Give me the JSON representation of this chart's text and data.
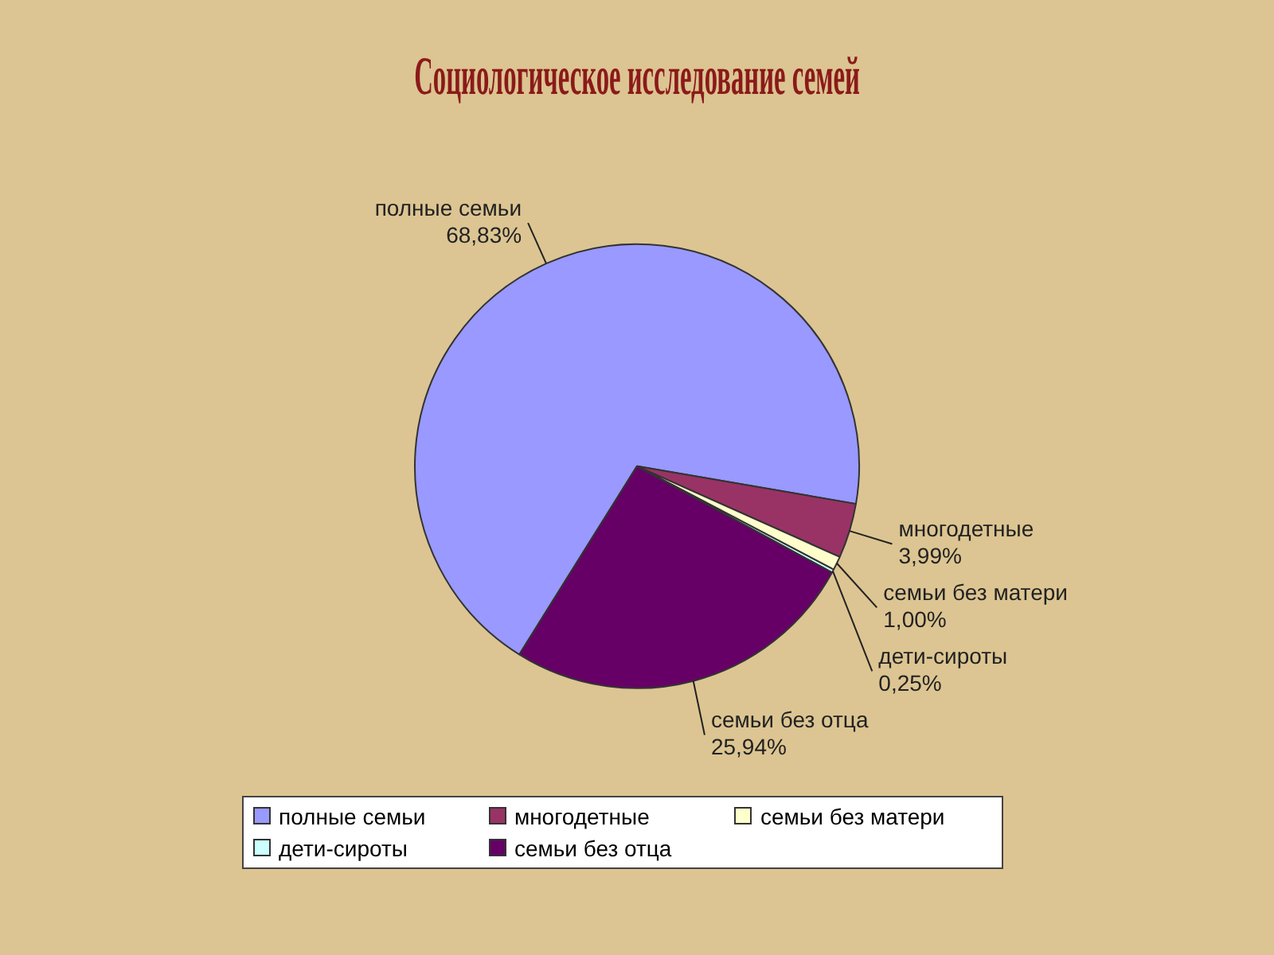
{
  "chart_data": {
    "type": "pie",
    "title": "Социологическое исследование семей",
    "categories": [
      "полные семьи",
      "многодетные",
      "семьи без матери",
      "дети-сироты",
      "семьи без отца"
    ],
    "values": [
      68.83,
      3.99,
      1.0,
      0.25,
      25.94
    ],
    "value_labels": [
      "68,83%",
      "3,99%",
      "1,00%",
      "0,25%",
      "25,94%"
    ],
    "colors": [
      "#9999ff",
      "#993366",
      "#ffffcc",
      "#ccffff",
      "#660066"
    ],
    "legend": "bottom"
  }
}
